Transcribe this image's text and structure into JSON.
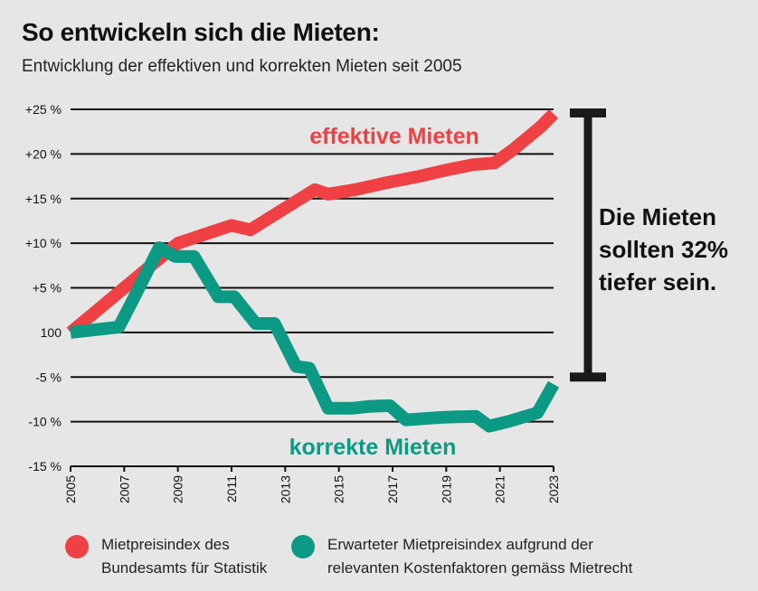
{
  "title": "So entwickeln sich die Mieten:",
  "subtitle": "Entwicklung der effektiven und korrekten Mieten seit 2005",
  "callout": {
    "line1": "Die Mieten",
    "line2": "sollten 32%",
    "line3": "tiefer sein."
  },
  "legend": {
    "series1": {
      "line1": "Mietpreisindex des",
      "line2": "Bundesamts für Statistik"
    },
    "series2": {
      "line1": "Erwarteter Mietpreisindex aufgrund der",
      "line2": "relevanten Kostenfaktoren gemäss Mietrecht"
    }
  },
  "colors": {
    "effektiv": "#ef4043",
    "korrekt": "#0c9a84",
    "grid": "#111111",
    "bar": "#1a1a1a"
  },
  "chart_data": {
    "type": "line",
    "title": "So entwickeln sich die Mieten:",
    "subtitle": "Entwicklung der effektiven und korrekten Mieten seit 2005",
    "xlabel": "",
    "ylabel": "",
    "xlim": [
      2005,
      2023
    ],
    "ylim": [
      -15,
      25
    ],
    "y_ticks": [
      {
        "value": 25,
        "label": "+25 %"
      },
      {
        "value": 20,
        "label": "+20 %"
      },
      {
        "value": 15,
        "label": "+15 %"
      },
      {
        "value": 10,
        "label": "+10 %"
      },
      {
        "value": 5,
        "label": "+5 %"
      },
      {
        "value": 0,
        "label": "100"
      },
      {
        "value": -5,
        "label": "-5 %"
      },
      {
        "value": -10,
        "label": "-10 %"
      },
      {
        "value": -15,
        "label": "-15 %"
      }
    ],
    "x_ticks": [
      "2005",
      "2007",
      "2009",
      "2011",
      "2013",
      "2015",
      "2017",
      "2019",
      "2021",
      "2023"
    ],
    "series": [
      {
        "name": "effektive Mieten",
        "color": "#ef4043",
        "x": [
          2005,
          2006,
          2007,
          2008,
          2009,
          2010,
          2011,
          2011.7,
          2012.5,
          2013.3,
          2014.1,
          2014.6,
          2015.6,
          2016.8,
          2018,
          2019,
          2020,
          2020.8,
          2021.5,
          2022.5,
          2023
        ],
        "values": [
          0,
          2.5,
          5,
          7.5,
          10,
          11,
          12,
          11.5,
          13,
          14.5,
          16,
          15.5,
          16,
          16.8,
          17.5,
          18.2,
          18.8,
          19,
          20.5,
          23,
          24.5
        ]
      },
      {
        "name": "korrekte Mieten",
        "color": "#0c9a84",
        "x": [
          2005,
          2006.8,
          2007.3,
          2008.3,
          2008.9,
          2009.6,
          2010.5,
          2011.1,
          2011.9,
          2012.6,
          2013.4,
          2013.9,
          2014.6,
          2015.5,
          2016.1,
          2016.9,
          2017.5,
          2018.9,
          2020.1,
          2020.6,
          2021.3,
          2022.4,
          2023
        ],
        "values": [
          0,
          0.6,
          3.5,
          9.5,
          8.5,
          8.5,
          4,
          4,
          1,
          1,
          -3.8,
          -4,
          -8.5,
          -8.5,
          -8.3,
          -8.2,
          -9.8,
          -9.5,
          -9.4,
          -10.5,
          -10,
          -9,
          -5.8
        ]
      }
    ],
    "series_labels": [
      "effektive Mieten",
      "korrekte Mieten"
    ],
    "annotation": {
      "from": 24.6,
      "to": -5,
      "text": "Die Mieten sollten 32% tiefer sein."
    }
  }
}
